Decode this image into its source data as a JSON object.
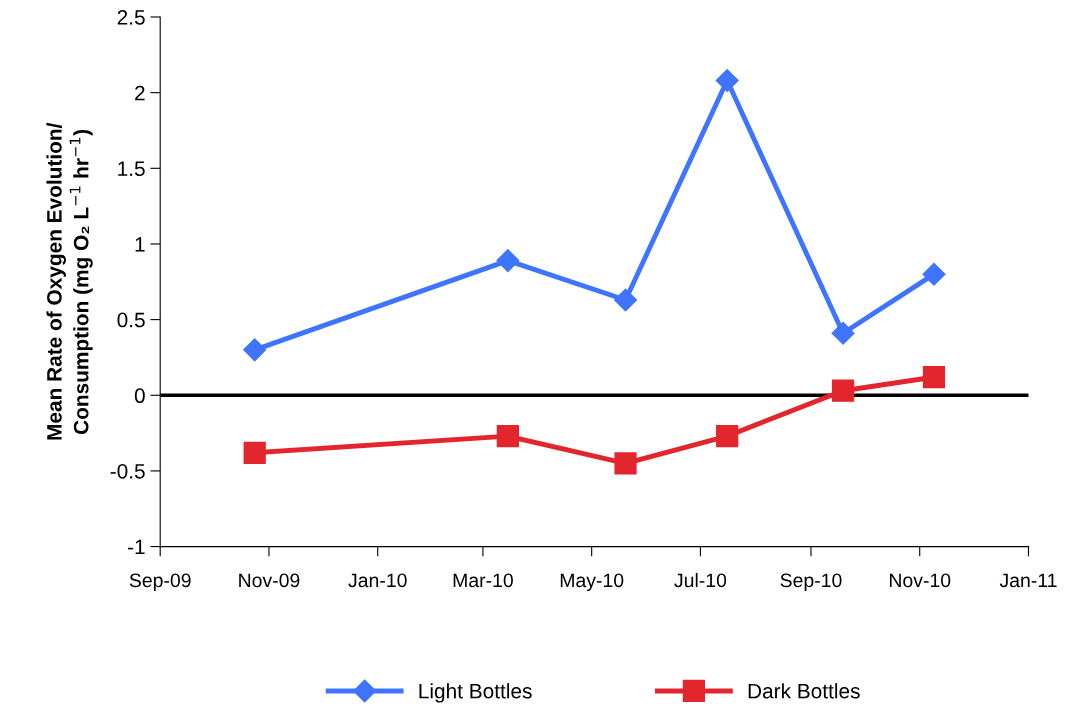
{
  "chart_data": {
    "type": "line",
    "ylabel": "Mean Rate of Oxygen Evolution/\nConsumption (mg O₂ L$^{−1}$ hr$^{−1}$)",
    "x": [
      "2009-10-24",
      "2010-03-15",
      "2010-05-20",
      "2010-07-16",
      "2010-09-19",
      "2010-11-09"
    ],
    "series": [
      {
        "name": "Light Bottles",
        "color": "#3f74ff",
        "marker": "diamond",
        "values": [
          0.3,
          0.89,
          0.63,
          2.08,
          0.41,
          0.8
        ]
      },
      {
        "name": "Dark Bottles",
        "color": "#e3262d",
        "marker": "square",
        "values": [
          -0.38,
          -0.27,
          -0.45,
          -0.27,
          0.03,
          0.12
        ]
      }
    ],
    "xlim": [
      "2009-09-01",
      "2011-01-01"
    ],
    "xticks": [
      {
        "value": "2009-09-01",
        "label": "Sep-09"
      },
      {
        "value": "2009-11-01",
        "label": "Nov-09"
      },
      {
        "value": "2010-01-01",
        "label": "Jan-10"
      },
      {
        "value": "2010-03-01",
        "label": "Mar-10"
      },
      {
        "value": "2010-05-01",
        "label": "May-10"
      },
      {
        "value": "2010-07-01",
        "label": "Jul-10"
      },
      {
        "value": "2010-09-01",
        "label": "Sep-10"
      },
      {
        "value": "2010-11-01",
        "label": "Nov-10"
      },
      {
        "value": "2011-01-01",
        "label": "Jan-11"
      }
    ],
    "ylim": [
      -1,
      2.5
    ],
    "yticks": [
      -1,
      -0.5,
      0,
      0.5,
      1,
      1.5,
      2,
      2.5
    ],
    "ref_lines": [
      {
        "axis": "y",
        "value": 0,
        "color": "#000000"
      }
    ],
    "grid": false,
    "legend": "bottom",
    "line_style": "solid"
  }
}
